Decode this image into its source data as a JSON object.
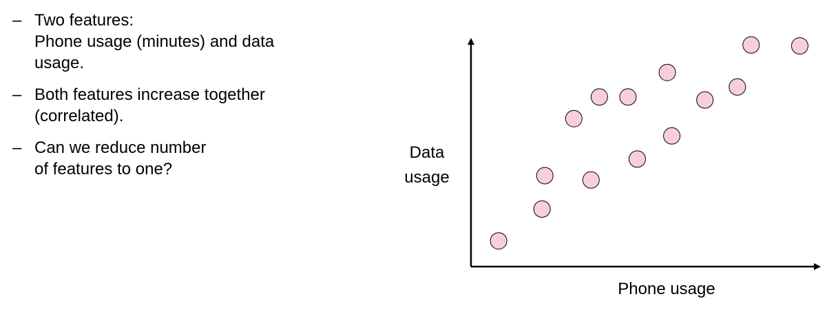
{
  "bullets": [
    {
      "dash": "–",
      "lines": [
        "Two features:",
        "Phone usage (minutes) and data",
        "usage."
      ]
    },
    {
      "dash": "–",
      "lines": [
        "Both features increase together",
        "(correlated)."
      ]
    },
    {
      "dash": "–",
      "lines": [
        "Can we reduce number",
        "of features to one?"
      ]
    }
  ],
  "chart_data": {
    "type": "scatter",
    "xlabel": "Phone usage",
    "ylabel_lines": [
      "Data",
      "usage"
    ],
    "xlim": [
      0,
      100
    ],
    "ylim": [
      0,
      100
    ],
    "grid": false,
    "tick_labels": false,
    "point_color": "#f9cde0",
    "point_stroke": "#000000",
    "axis_color": "#000000",
    "points": [
      {
        "x": 8.0,
        "y": 11.3
      },
      {
        "x": 20.6,
        "y": 25.3
      },
      {
        "x": 21.4,
        "y": 40.0
      },
      {
        "x": 29.8,
        "y": 65.1
      },
      {
        "x": 34.8,
        "y": 38.1
      },
      {
        "x": 37.2,
        "y": 74.6
      },
      {
        "x": 45.5,
        "y": 74.6
      },
      {
        "x": 48.2,
        "y": 47.3
      },
      {
        "x": 56.9,
        "y": 85.4
      },
      {
        "x": 58.2,
        "y": 57.5
      },
      {
        "x": 67.8,
        "y": 73.3
      },
      {
        "x": 77.2,
        "y": 79.0
      },
      {
        "x": 81.2,
        "y": 97.5
      },
      {
        "x": 95.3,
        "y": 97.1
      }
    ]
  }
}
